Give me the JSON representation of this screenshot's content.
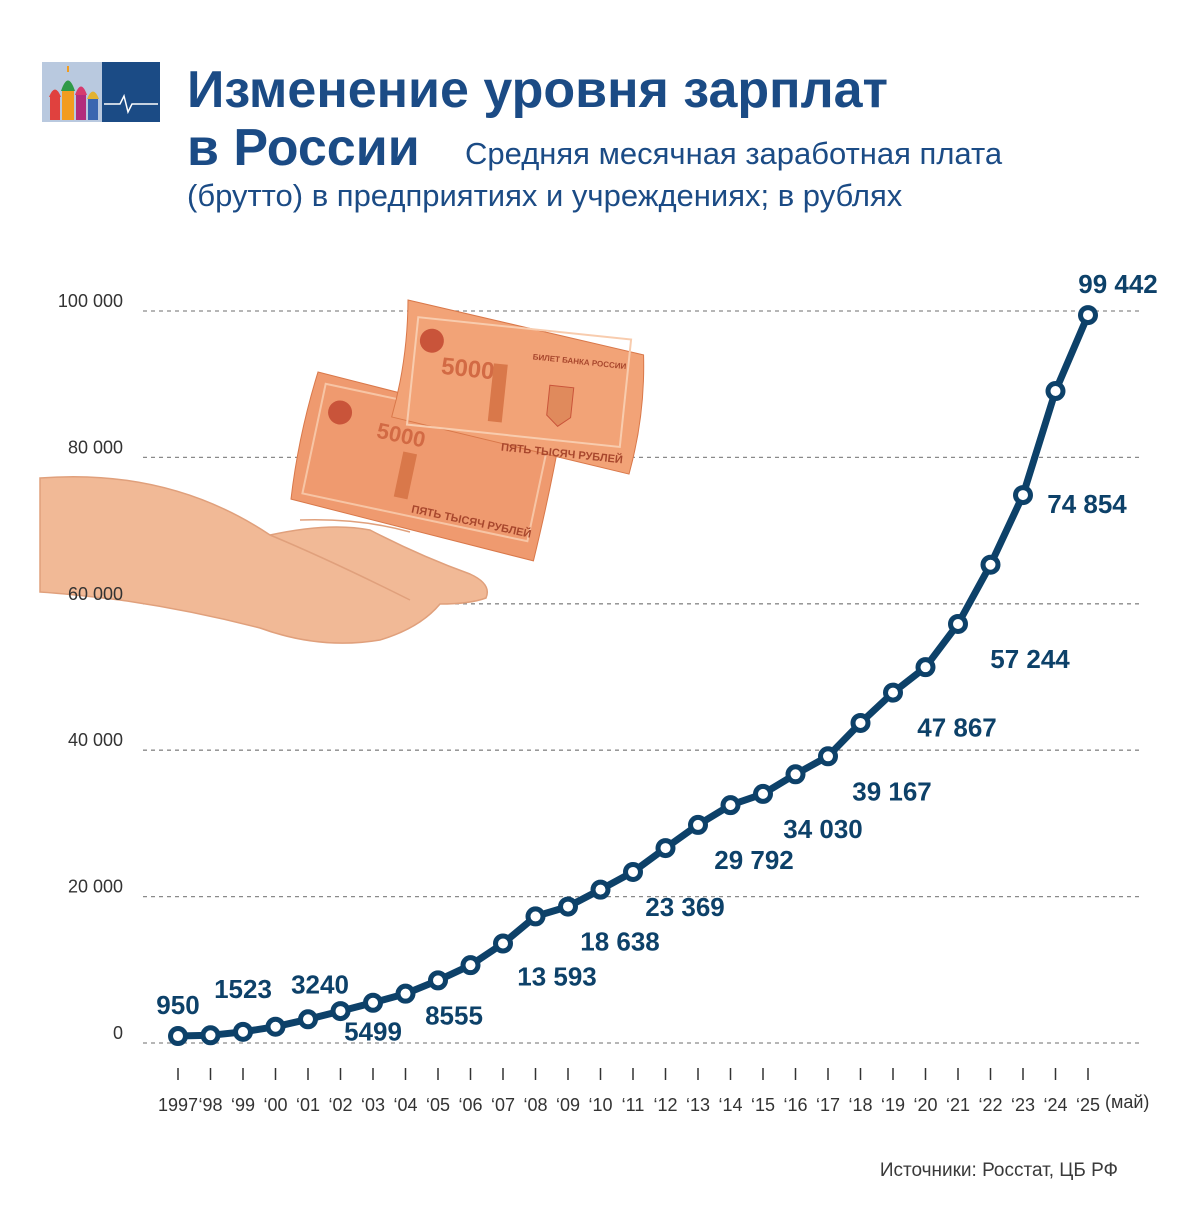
{
  "header": {
    "title_line1": "Изменение уровня зарплат",
    "title_line2": "в России",
    "subtitle_line1": "Средняя месячная заработная плата",
    "subtitle_line2": "(брутто) в предприятиях и учреждениях; в рублях"
  },
  "banknote_text": {
    "denomination": "5000",
    "bank_line": "БИЛЕТ БАНКА РОССИИ",
    "amount_words": "ПЯТЬ ТЫСЯЧ РУБЛЕЙ"
  },
  "source": "Источники: Росстат, ЦБ РФ",
  "colors": {
    "line": "#0d4169",
    "title": "#1b4b85",
    "grid": "#8a8a8a",
    "label": "#0d4169",
    "banknote": "#ef9a6f",
    "hand": "#f1b996"
  },
  "icons": [
    "moscow-logo-icon",
    "banknote-icon",
    "hand-icon"
  ],
  "chart_data": {
    "type": "line",
    "title": "Изменение уровня зарплат в России",
    "xlabel": "",
    "ylabel": "",
    "ylim": [
      0,
      100000
    ],
    "yticks": [
      0,
      20000,
      40000,
      60000,
      80000,
      100000
    ],
    "ytick_labels": [
      "0",
      "20 000",
      "40 000",
      "60 000",
      "80 000",
      "100 000"
    ],
    "grid": true,
    "x_suffix": "(май)",
    "categories": [
      "1997",
      "‘98",
      "‘99",
      "‘00",
      "‘01",
      "‘02",
      "‘03",
      "‘04",
      "‘05",
      "‘06",
      "‘07",
      "‘08",
      "‘09",
      "‘10",
      "‘11",
      "‘12",
      "‘13",
      "‘14",
      "‘15",
      "‘16",
      "‘17",
      "‘18",
      "‘19",
      "‘20",
      "‘21",
      "‘22",
      "‘23",
      "‘24",
      "‘25"
    ],
    "series": [
      {
        "values": [
          950,
          1052,
          1523,
          2223,
          3240,
          4360,
          5499,
          6740,
          8555,
          10633,
          13593,
          17290,
          18638,
          20952,
          23369,
          26629,
          29792,
          32495,
          34030,
          36709,
          39167,
          43724,
          47867,
          51344,
          57244,
          65338,
          74854,
          89069,
          99442
        ],
        "labels": [
          "950",
          "",
          "1523",
          "",
          "3240",
          "",
          "5499",
          "",
          "8555",
          "",
          "13 593",
          "",
          "18 638",
          "",
          "23 369",
          "",
          "29 792",
          "",
          "34 030",
          "",
          "39 167",
          "",
          "47 867",
          "",
          "57 244",
          "",
          "74 854",
          "",
          "99 442"
        ]
      }
    ]
  }
}
